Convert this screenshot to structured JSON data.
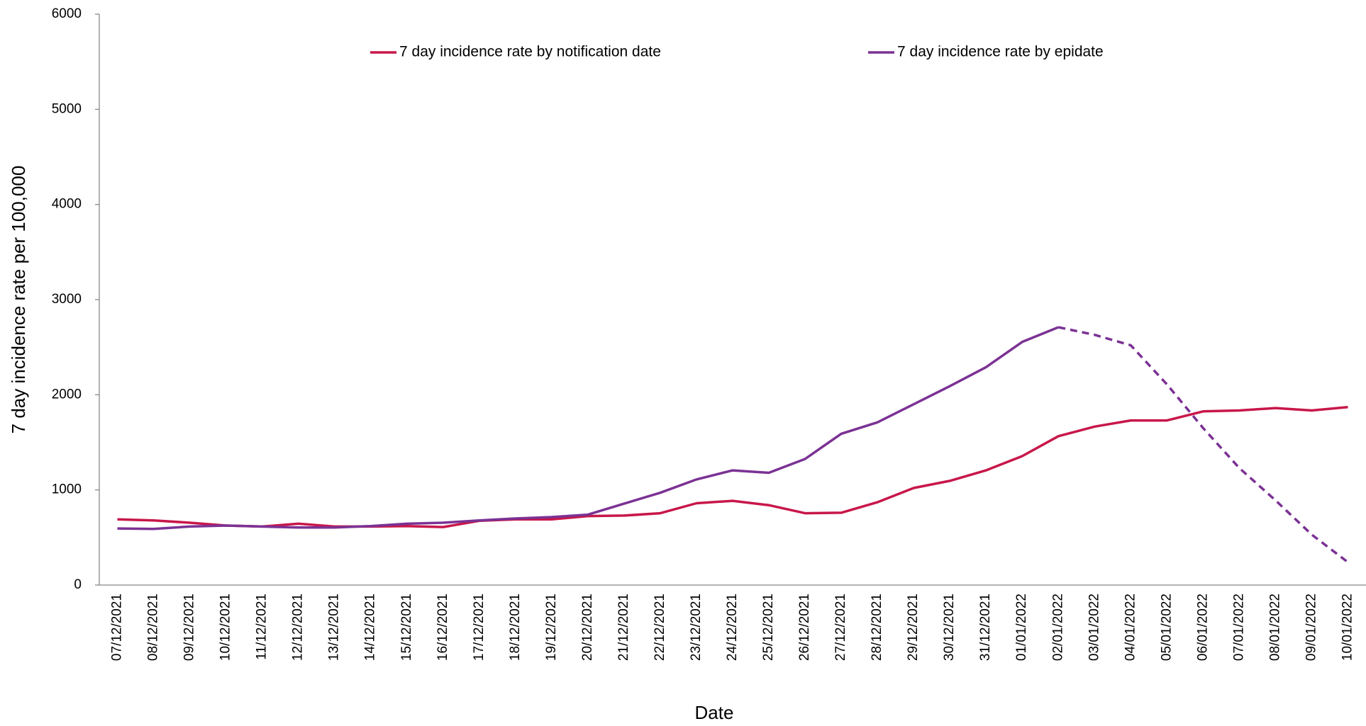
{
  "chart_data": {
    "type": "line",
    "x_label": "Date",
    "y_label": "7 day incidence rate per 100,000",
    "categories": [
      "07/12/2021",
      "08/12/2021",
      "09/12/2021",
      "10/12/2021",
      "11/12/2021",
      "12/12/2021",
      "13/12/2021",
      "14/12/2021",
      "15/12/2021",
      "16/12/2021",
      "17/12/2021",
      "18/12/2021",
      "19/12/2021",
      "20/12/2021",
      "21/12/2021",
      "22/12/2021",
      "23/12/2021",
      "24/12/2021",
      "25/12/2021",
      "26/12/2021",
      "27/12/2021",
      "28/12/2021",
      "29/12/2021",
      "30/12/2021",
      "31/12/2021",
      "01/01/2022",
      "02/01/2022",
      "03/01/2022",
      "04/01/2022",
      "05/01/2022",
      "06/01/2022",
      "07/01/2022",
      "08/01/2022",
      "09/01/2022",
      "10/01/2022"
    ],
    "series": [
      {
        "name": "7 day incidence rate by notification date",
        "color": "#c8174a",
        "values": [
          690,
          680,
          655,
          625,
          615,
          645,
          615,
          615,
          620,
          610,
          675,
          690,
          690,
          725,
          730,
          755,
          860,
          885,
          840,
          755,
          760,
          870,
          1020,
          1095,
          1205,
          1355,
          1565,
          1665,
          1730,
          1730,
          1825,
          1835,
          1860,
          1835,
          1870
        ]
      },
      {
        "name": "7 day incidence rate by epidate",
        "color": "#7b3294",
        "dash_start": 26,
        "values": [
          595,
          590,
          615,
          625,
          615,
          605,
          605,
          620,
          645,
          655,
          680,
          700,
          715,
          740,
          855,
          970,
          1110,
          1205,
          1180,
          1325,
          1590,
          1710,
          1900,
          2090,
          2290,
          2555,
          2710,
          2630,
          2520,
          2110,
          1650,
          1230,
          890,
          530,
          240
        ]
      }
    ],
    "ylim": [
      0,
      6000
    ],
    "yticks": [
      0,
      1000,
      2000,
      3000,
      4000,
      5000,
      6000
    ],
    "grid": false,
    "legend": "top"
  }
}
